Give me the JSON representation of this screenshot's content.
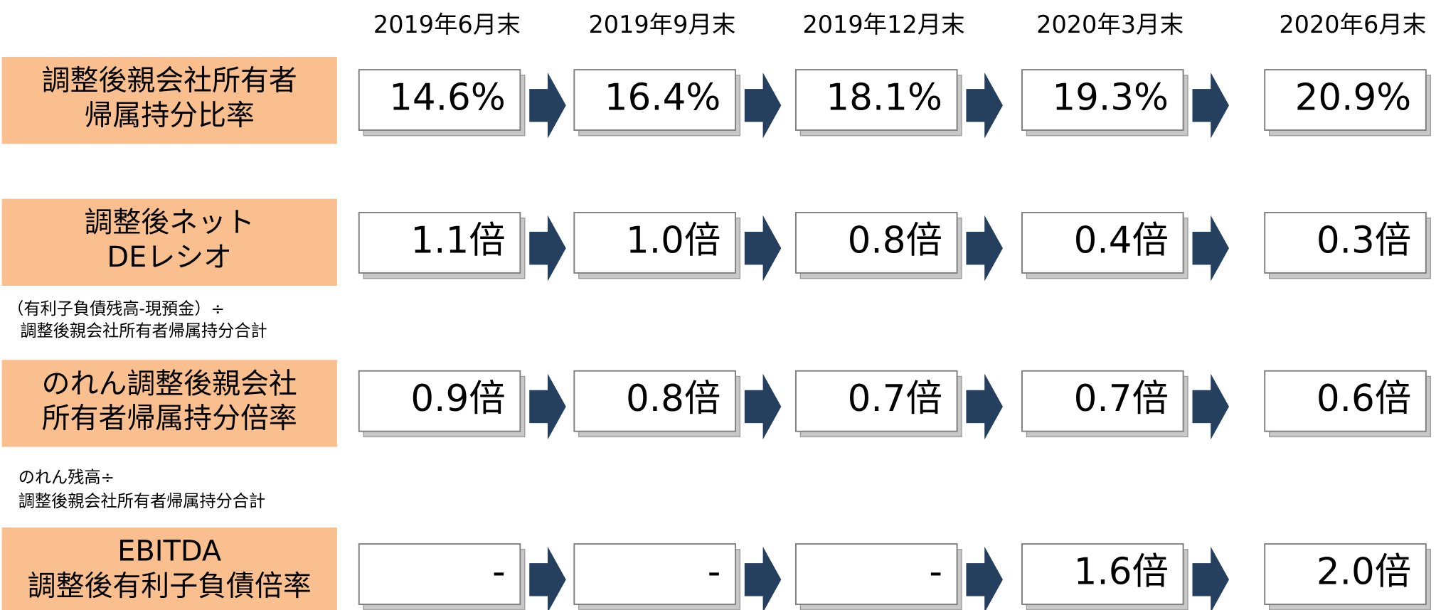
{
  "header": {
    "periods": [
      "2019年6月末",
      "2019年9月末",
      "2019年12月末",
      "2020年3月末",
      "2020年6月末"
    ]
  },
  "rows": [
    {
      "label": [
        "調整後親会社所有者",
        "帰属持分比率"
      ],
      "values": [
        "14.6%",
        "16.4%",
        "18.1%",
        "19.3%",
        "20.9%"
      ]
    },
    {
      "label": [
        "調整後ネット",
        "DEレシオ"
      ],
      "note": [
        "（有利子負債残高-現預金）÷",
        "調整後親会社所有者帰属持分合計"
      ],
      "values": [
        "1.1倍",
        "1.0倍",
        "0.8倍",
        "0.4倍",
        "0.3倍"
      ]
    },
    {
      "label": [
        "のれん調整後親会社",
        "所有者帰属持分倍率"
      ],
      "note": [
        "のれん残高÷",
        "調整後親会社所有者帰属持分合計"
      ],
      "values": [
        "0.9倍",
        "0.8倍",
        "0.7倍",
        "0.7倍",
        "0.6倍"
      ]
    },
    {
      "label": [
        "EBITDA",
        "調整後有利子負債倍率"
      ],
      "values": [
        "-",
        "-",
        "-",
        "1.6倍",
        "2.0倍"
      ]
    }
  ]
}
